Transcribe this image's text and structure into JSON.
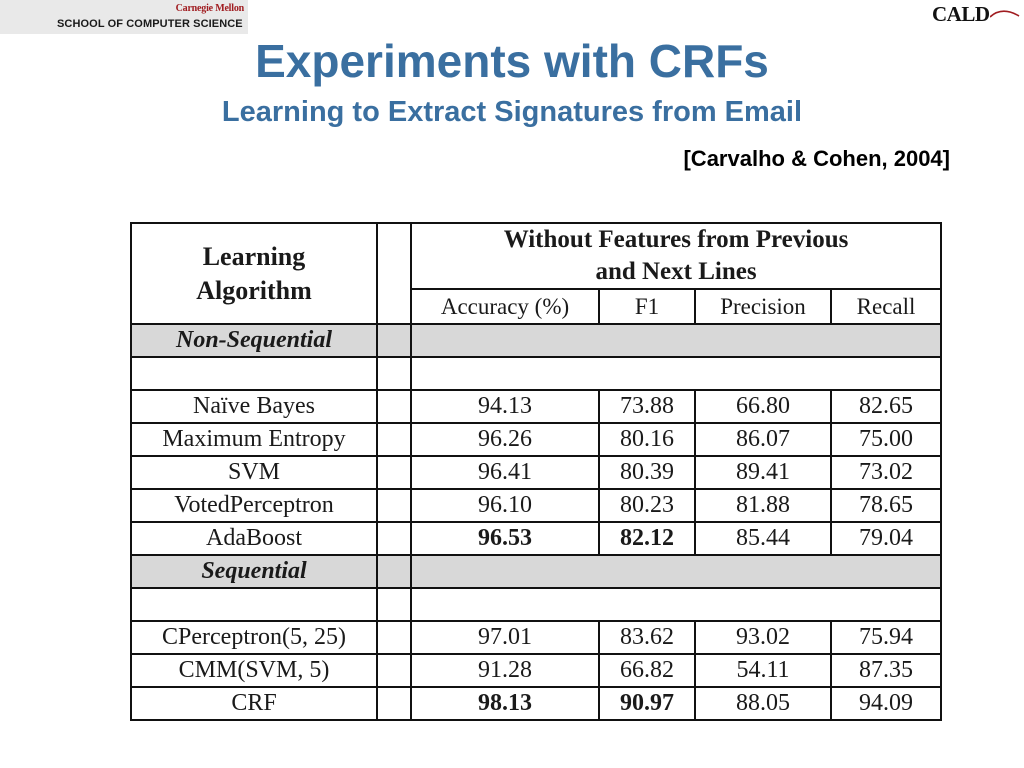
{
  "header": {
    "university": "Carnegie Mellon",
    "school": "SCHOOL OF COMPUTER SCIENCE",
    "lab_logo": "CALD"
  },
  "title": "Experiments with CRFs",
  "subtitle": "Learning to Extract Signatures from Email",
  "citation": "[Carvalho & Cohen, 2004]",
  "table": {
    "algo_header_line1": "Learning",
    "algo_header_line2": "Algorithm",
    "group_header_line1": "Without Features from Previous",
    "group_header_line2": "and Next Lines",
    "columns": [
      "Accuracy (%)",
      "F1",
      "Precision",
      "Recall"
    ],
    "sections": [
      {
        "label": "Non-Sequential",
        "rows": [
          {
            "name": "Naïve Bayes",
            "values": [
              "94.13",
              "73.88",
              "66.80",
              "82.65"
            ],
            "bold": [
              false,
              false,
              false,
              false
            ]
          },
          {
            "name": "Maximum Entropy",
            "values": [
              "96.26",
              "80.16",
              "86.07",
              "75.00"
            ],
            "bold": [
              false,
              false,
              false,
              false
            ]
          },
          {
            "name": "SVM",
            "values": [
              "96.41",
              "80.39",
              "89.41",
              "73.02"
            ],
            "bold": [
              false,
              false,
              false,
              false
            ]
          },
          {
            "name": "VotedPerceptron",
            "values": [
              "96.10",
              "80.23",
              "81.88",
              "78.65"
            ],
            "bold": [
              false,
              false,
              false,
              false
            ]
          },
          {
            "name": "AdaBoost",
            "values": [
              "96.53",
              "82.12",
              "85.44",
              "79.04"
            ],
            "bold": [
              true,
              true,
              false,
              false
            ]
          }
        ]
      },
      {
        "label": "Sequential",
        "rows": [
          {
            "name": "CPerceptron(5, 25)",
            "values": [
              "97.01",
              "83.62",
              "93.02",
              "75.94"
            ],
            "bold": [
              false,
              false,
              false,
              false
            ]
          },
          {
            "name": "CMM(SVM, 5)",
            "values": [
              "91.28",
              "66.82",
              "54.11",
              "87.35"
            ],
            "bold": [
              false,
              false,
              false,
              false
            ]
          },
          {
            "name": "CRF",
            "values": [
              "98.13",
              "90.97",
              "88.05",
              "94.09"
            ],
            "bold": [
              true,
              true,
              false,
              false
            ]
          }
        ]
      }
    ]
  },
  "colors": {
    "title": "#3a6fa0",
    "section_fill": "#d8d8d8",
    "cmu_red": "#a01c20"
  }
}
